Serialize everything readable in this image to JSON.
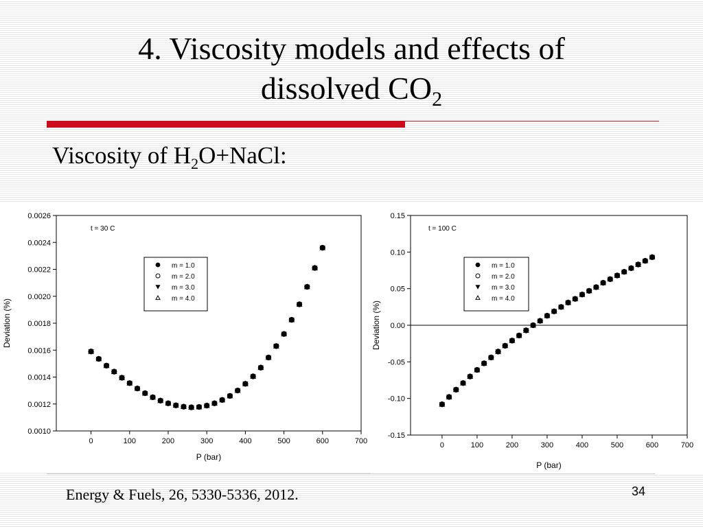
{
  "slide": {
    "title_line1": "4. Viscosity models and effects of",
    "title_line2_main": "dissolved CO",
    "title_line2_sub": "2",
    "subtitle_part1": "Viscosity of H",
    "subtitle_sub": "2",
    "subtitle_part2": "O+NaCl:",
    "citation": "Energy & Fuels, 26, 5330-5336, 2012.",
    "page_number": "34",
    "accent_color": "#cc0c1c"
  },
  "chart_data": [
    {
      "type": "scatter",
      "annotation": "t = 30 C",
      "xlabel": "P (bar)",
      "ylabel": "Deviation (%)",
      "xlim": [
        -90,
        700
      ],
      "ylim": [
        0.001,
        0.0026
      ],
      "xticks": [
        0,
        100,
        200,
        300,
        400,
        500,
        600,
        700
      ],
      "yticks": [
        0.001,
        0.0012,
        0.0014,
        0.0016,
        0.0018,
        0.002,
        0.0022,
        0.0024,
        0.0026
      ],
      "ytick_labels": [
        "0.0010",
        "0.0012",
        "0.0014",
        "0.0016",
        "0.0018",
        "0.0020",
        "0.0022",
        "0.0024",
        "0.0026"
      ],
      "grid": false,
      "zero_line": false,
      "legend_position": "top-center",
      "x": [
        0,
        20,
        40,
        60,
        80,
        100,
        120,
        140,
        160,
        180,
        200,
        220,
        240,
        260,
        280,
        300,
        320,
        340,
        360,
        380,
        400,
        420,
        440,
        460,
        480,
        500,
        520,
        540,
        560,
        580,
        600
      ],
      "series": [
        {
          "name": "m = 1.0",
          "marker": "filled-circle",
          "values": [
            0.00159,
            0.001535,
            0.001485,
            0.00144,
            0.001395,
            0.001355,
            0.001315,
            0.00128,
            0.00125,
            0.001225,
            0.001205,
            0.00119,
            0.00118,
            0.001175,
            0.001178,
            0.001188,
            0.001205,
            0.00123,
            0.00126,
            0.0013,
            0.00135,
            0.001405,
            0.00147,
            0.001545,
            0.00163,
            0.00172,
            0.001825,
            0.00194,
            0.00207,
            0.00221,
            0.00236
          ]
        },
        {
          "name": "m = 2.0",
          "marker": "open-circle",
          "values": [
            0.00159,
            0.001535,
            0.001485,
            0.00144,
            0.001395,
            0.001355,
            0.001315,
            0.00128,
            0.00125,
            0.001225,
            0.001205,
            0.00119,
            0.00118,
            0.001175,
            0.001178,
            0.001188,
            0.001205,
            0.00123,
            0.00126,
            0.0013,
            0.00135,
            0.001405,
            0.00147,
            0.001545,
            0.00163,
            0.00172,
            0.001825,
            0.00194,
            0.00207,
            0.00221,
            0.00236
          ]
        },
        {
          "name": "m = 3.0",
          "marker": "filled-triangle-down",
          "values": [
            0.00159,
            0.001535,
            0.001485,
            0.00144,
            0.001395,
            0.001355,
            0.001315,
            0.00128,
            0.00125,
            0.001225,
            0.001205,
            0.00119,
            0.00118,
            0.001175,
            0.001178,
            0.001188,
            0.001205,
            0.00123,
            0.00126,
            0.0013,
            0.00135,
            0.001405,
            0.00147,
            0.001545,
            0.00163,
            0.00172,
            0.001825,
            0.00194,
            0.00207,
            0.00221,
            0.00236
          ]
        },
        {
          "name": "m = 4.0",
          "marker": "open-triangle-up",
          "values": [
            0.00159,
            0.001535,
            0.001485,
            0.00144,
            0.001395,
            0.001355,
            0.001315,
            0.00128,
            0.00125,
            0.001225,
            0.001205,
            0.00119,
            0.00118,
            0.001175,
            0.001178,
            0.001188,
            0.001205,
            0.00123,
            0.00126,
            0.0013,
            0.00135,
            0.001405,
            0.00147,
            0.001545,
            0.00163,
            0.00172,
            0.001825,
            0.00194,
            0.00207,
            0.00221,
            0.00236
          ]
        }
      ]
    },
    {
      "type": "scatter",
      "annotation": "t = 100 C",
      "xlabel": "P (bar)",
      "ylabel": "Deviation (%)",
      "xlim": [
        -90,
        700
      ],
      "ylim": [
        -0.15,
        0.15
      ],
      "xticks": [
        0,
        100,
        200,
        300,
        400,
        500,
        600,
        700
      ],
      "yticks": [
        -0.15,
        -0.1,
        -0.05,
        0,
        0.05,
        0.1,
        0.15
      ],
      "ytick_labels": [
        "-0.15",
        "-0.10",
        "-0.05",
        "0.00",
        "0.05",
        "0.10",
        "0.15"
      ],
      "grid": false,
      "zero_line": true,
      "legend_position": "top-center",
      "x": [
        0,
        20,
        40,
        60,
        80,
        100,
        120,
        140,
        160,
        180,
        200,
        220,
        240,
        260,
        280,
        300,
        320,
        340,
        360,
        380,
        400,
        420,
        440,
        460,
        480,
        500,
        520,
        540,
        560,
        580,
        600
      ],
      "series": [
        {
          "name": "m = 1.0",
          "marker": "filled-circle",
          "values": [
            -0.108,
            -0.098,
            -0.088,
            -0.079,
            -0.07,
            -0.061,
            -0.052,
            -0.044,
            -0.036,
            -0.028,
            -0.021,
            -0.014,
            -0.007,
            0.0,
            0.006,
            0.013,
            0.019,
            0.025,
            0.031,
            0.036,
            0.042,
            0.047,
            0.052,
            0.058,
            0.063,
            0.068,
            0.073,
            0.078,
            0.083,
            0.088,
            0.093
          ]
        },
        {
          "name": "m = 2.0",
          "marker": "open-circle",
          "values": [
            -0.108,
            -0.098,
            -0.088,
            -0.079,
            -0.07,
            -0.061,
            -0.052,
            -0.044,
            -0.036,
            -0.028,
            -0.021,
            -0.014,
            -0.007,
            0.0,
            0.006,
            0.013,
            0.019,
            0.025,
            0.031,
            0.036,
            0.042,
            0.047,
            0.052,
            0.058,
            0.063,
            0.068,
            0.073,
            0.078,
            0.083,
            0.088,
            0.093
          ]
        },
        {
          "name": "m = 3.0",
          "marker": "filled-triangle-down",
          "values": [
            -0.108,
            -0.098,
            -0.088,
            -0.079,
            -0.07,
            -0.061,
            -0.052,
            -0.044,
            -0.036,
            -0.028,
            -0.021,
            -0.014,
            -0.007,
            0.0,
            0.006,
            0.013,
            0.019,
            0.025,
            0.031,
            0.036,
            0.042,
            0.047,
            0.052,
            0.058,
            0.063,
            0.068,
            0.073,
            0.078,
            0.083,
            0.088,
            0.093
          ]
        },
        {
          "name": "m = 4.0",
          "marker": "open-triangle-up",
          "values": [
            -0.108,
            -0.098,
            -0.088,
            -0.079,
            -0.07,
            -0.061,
            -0.052,
            -0.044,
            -0.036,
            -0.028,
            -0.021,
            -0.014,
            -0.007,
            0.0,
            0.006,
            0.013,
            0.019,
            0.025,
            0.031,
            0.036,
            0.042,
            0.047,
            0.052,
            0.058,
            0.063,
            0.068,
            0.073,
            0.078,
            0.083,
            0.088,
            0.093
          ]
        }
      ]
    }
  ]
}
